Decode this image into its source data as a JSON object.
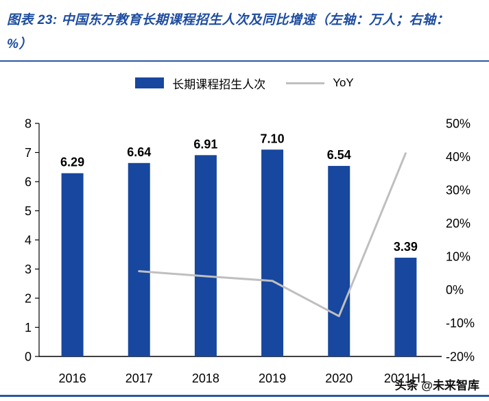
{
  "title": "图表 23:  中国东方教育长期课程招生人次及同比增速（左轴：万人；右轴：%）",
  "watermark": "头条 @未来智库",
  "legend": {
    "bar_label": "长期课程招生人次",
    "line_label": "YoY"
  },
  "chart_data": {
    "type": "bar+line",
    "title": "中国东方教育长期课程招生人次及同比增速",
    "categories": [
      "2016",
      "2017",
      "2018",
      "2019",
      "2020",
      "2021H1"
    ],
    "series": [
      {
        "name": "长期课程招生人次",
        "type": "bar",
        "axis": "left",
        "color": "#17479e",
        "values": [
          6.29,
          6.64,
          6.91,
          7.1,
          6.54,
          3.39
        ],
        "labels": [
          "6.29",
          "6.64",
          "6.91",
          "7.10",
          "6.54",
          "3.39"
        ]
      },
      {
        "name": "YoY",
        "type": "line",
        "axis": "right",
        "color": "#bfbfbf",
        "values": [
          null,
          5.6,
          4.1,
          2.7,
          -7.9,
          41.0
        ]
      }
    ],
    "left_axis": {
      "min": 0,
      "max": 8,
      "ticks": [
        0,
        1,
        2,
        3,
        4,
        5,
        6,
        7,
        8
      ],
      "label": "万人"
    },
    "right_axis": {
      "min": -20,
      "max": 50,
      "ticks": [
        -20,
        -10,
        0,
        10,
        20,
        30,
        40,
        50
      ],
      "suffix": "%",
      "label": "%"
    },
    "legend_position": "top",
    "grid": false
  }
}
